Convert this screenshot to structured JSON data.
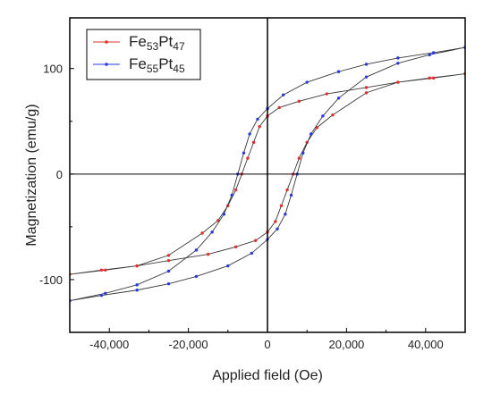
{
  "chart_data": {
    "type": "line",
    "xlabel": "Applied field (Oe)",
    "ylabel": "Magnetization (emu/g)",
    "xlim": [
      -50000,
      50000
    ],
    "ylim": [
      -150,
      148
    ],
    "x_ticks": [
      -40000,
      -20000,
      0,
      20000,
      40000
    ],
    "x_tick_labels": [
      "-40,000",
      "-20,000",
      "0",
      "20,000",
      "40,000"
    ],
    "y_ticks": [
      -100,
      0,
      100
    ],
    "y_tick_labels": [
      "-100",
      "0",
      "100"
    ],
    "grid": false,
    "legend_position": "top-left",
    "series": [
      {
        "name_base_1": "Fe",
        "name_sub_1": "53",
        "name_base_2": "Pt",
        "name_sub_2": "47",
        "color": "#e0302a",
        "points": [
          [
            50000,
            95
          ],
          [
            41000,
            91
          ],
          [
            33000,
            87
          ],
          [
            25000,
            77
          ],
          [
            16500,
            56
          ],
          [
            12500,
            44
          ],
          [
            10000,
            30
          ],
          [
            8000,
            15
          ],
          [
            6500,
            0
          ],
          [
            5000,
            -15
          ],
          [
            3500,
            -30
          ],
          [
            2000,
            -45
          ],
          [
            0,
            -55
          ],
          [
            -3000,
            -63
          ],
          [
            -8000,
            -69
          ],
          [
            -15000,
            -76
          ],
          [
            -25000,
            -82
          ],
          [
            -33000,
            -87
          ],
          [
            -42000,
            -91
          ],
          [
            -50000,
            -95
          ],
          [
            -41000,
            -91
          ],
          [
            -33000,
            -87
          ],
          [
            -25000,
            -77
          ],
          [
            -16500,
            -56
          ],
          [
            -12500,
            -44
          ],
          [
            -10000,
            -30
          ],
          [
            -8000,
            -15
          ],
          [
            -6500,
            0
          ],
          [
            -5000,
            15
          ],
          [
            -3500,
            30
          ],
          [
            -2000,
            45
          ],
          [
            0,
            55
          ],
          [
            3000,
            63
          ],
          [
            8000,
            69
          ],
          [
            15000,
            76
          ],
          [
            25000,
            82
          ],
          [
            33000,
            87
          ],
          [
            42000,
            91
          ],
          [
            50000,
            95
          ]
        ]
      },
      {
        "name_base_1": "Fe",
        "name_sub_1": "55",
        "name_base_2": "Pt",
        "name_sub_2": "45",
        "color": "#2a3ad8",
        "points": [
          [
            50000,
            120
          ],
          [
            41000,
            113
          ],
          [
            33000,
            105
          ],
          [
            25000,
            92
          ],
          [
            18000,
            72
          ],
          [
            14000,
            55
          ],
          [
            11000,
            38
          ],
          [
            9000,
            20
          ],
          [
            7500,
            0
          ],
          [
            6000,
            -20
          ],
          [
            4500,
            -38
          ],
          [
            2500,
            -52
          ],
          [
            0,
            -62
          ],
          [
            -4000,
            -75
          ],
          [
            -10000,
            -87
          ],
          [
            -18000,
            -97
          ],
          [
            -25000,
            -104
          ],
          [
            -33000,
            -110
          ],
          [
            -42000,
            -115
          ],
          [
            -50000,
            -120
          ],
          [
            -41000,
            -113
          ],
          [
            -33000,
            -105
          ],
          [
            -25000,
            -92
          ],
          [
            -18000,
            -72
          ],
          [
            -14000,
            -55
          ],
          [
            -11000,
            -38
          ],
          [
            -9000,
            -20
          ],
          [
            -7500,
            0
          ],
          [
            -6000,
            20
          ],
          [
            -4500,
            38
          ],
          [
            -2500,
            52
          ],
          [
            0,
            62
          ],
          [
            4000,
            75
          ],
          [
            10000,
            87
          ],
          [
            18000,
            97
          ],
          [
            25000,
            104
          ],
          [
            33000,
            110
          ],
          [
            42000,
            115
          ],
          [
            50000,
            120
          ]
        ]
      }
    ]
  }
}
